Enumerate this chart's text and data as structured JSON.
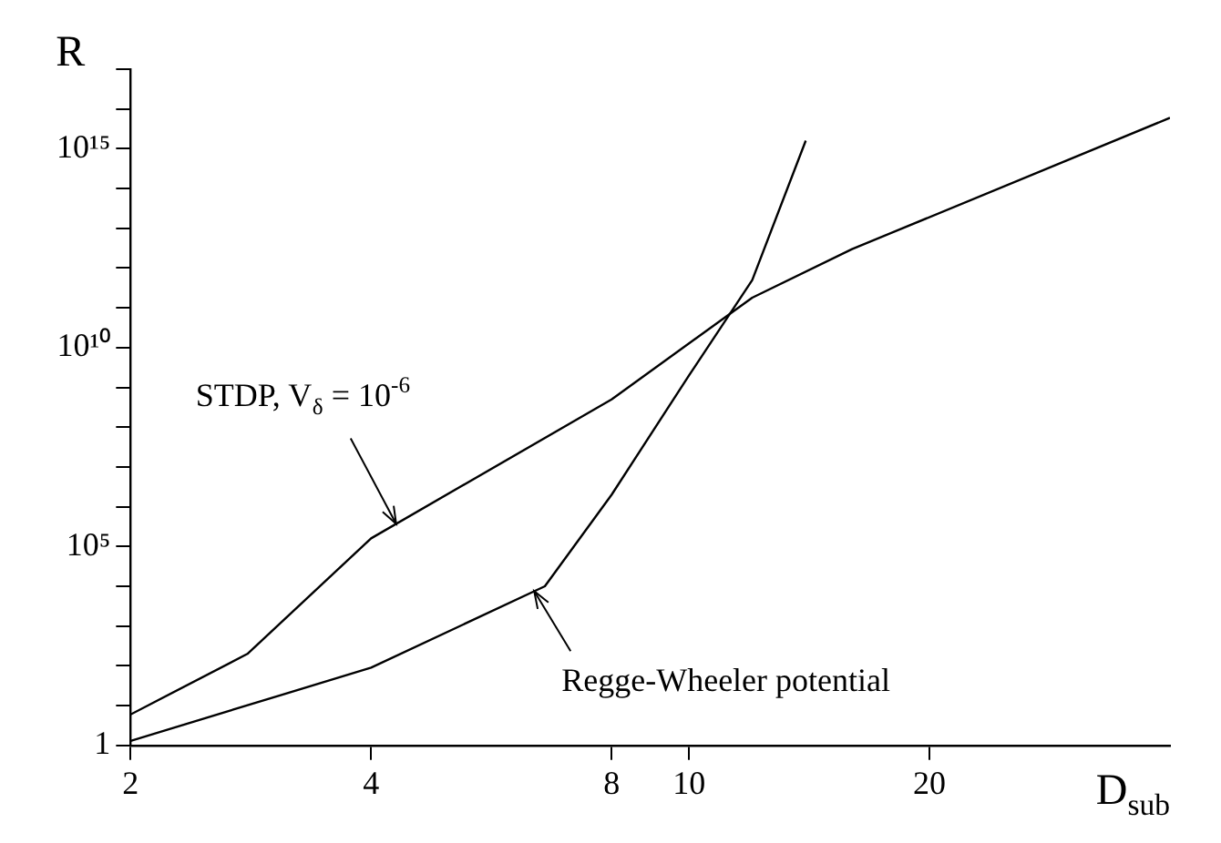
{
  "chart_data": {
    "type": "line",
    "xlabel": "D$_{sub}$",
    "ylabel": "R",
    "xlim": [
      2,
      40
    ],
    "xticks": [
      2,
      4,
      8,
      10,
      20
    ],
    "ylim": [
      1,
      1e+17
    ],
    "yticks": [
      {
        "value": 1,
        "label": "1"
      },
      {
        "value": 10,
        "label": null
      },
      {
        "value": 100,
        "label": null
      },
      {
        "value": 1000,
        "label": null
      },
      {
        "value": 10000,
        "label": null
      },
      {
        "value": 100000,
        "label": "10⁵"
      },
      {
        "value": 1000000.0,
        "label": null
      },
      {
        "value": 10000000.0,
        "label": null
      },
      {
        "value": 100000000.0,
        "label": null
      },
      {
        "value": 1000000000.0,
        "label": null
      },
      {
        "value": 10000000000.0,
        "label": "10¹⁰"
      },
      {
        "value": 100000000000.0,
        "label": null
      },
      {
        "value": 1000000000000.0,
        "label": null
      },
      {
        "value": 10000000000000.0,
        "label": null
      },
      {
        "value": 100000000000000.0,
        "label": null
      },
      {
        "value": 1000000000000000.0,
        "label": "10¹⁵"
      },
      {
        "value": 1e+16,
        "label": null
      },
      {
        "value": 1e+17,
        "label": null
      }
    ],
    "log": "xy",
    "grid": false,
    "legend": false,
    "marker": "none",
    "line_style": "solid",
    "series": [
      {
        "color": "#000000",
        "x": [
          2,
          2.8,
          4,
          8,
          12,
          16,
          40
        ],
        "values": [
          6,
          200,
          160000,
          500000000,
          180000000000,
          3000000000000,
          6000000000000000
        ]
      },
      {
        "color": "#000000",
        "x": [
          2,
          4,
          6.6,
          8,
          10,
          12,
          14
        ],
        "values": [
          1.3,
          90,
          10000,
          2000000,
          2000000000,
          500000000000,
          1600000000000000
        ]
      }
    ],
    "annotations": [
      {
        "text": "STDP, V$_{δ}$ = 10$^{-6}$",
        "x": 4.3,
        "y": 370000
      },
      {
        "text": "Regge-Wheeler potential",
        "x": 6.4,
        "y": 7600
      }
    ]
  }
}
